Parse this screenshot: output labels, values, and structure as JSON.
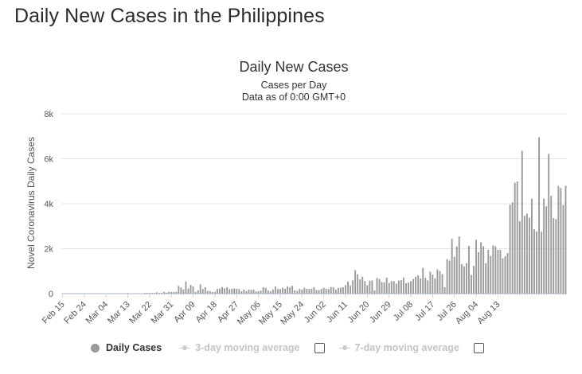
{
  "page": {
    "heading": "Daily New Cases in the Philippines"
  },
  "chart_data": {
    "type": "bar",
    "title": "Daily New Cases",
    "subtitle_lines": [
      "Cases per Day",
      "Data as of 0:00 GMT+0"
    ],
    "ylabel": "Novel Coronavirus Daily Cases",
    "xlabel": "",
    "ylim": [
      0,
      8000
    ],
    "y_ticks": [
      0,
      2000,
      4000,
      6000,
      8000
    ],
    "y_tick_labels": [
      "0",
      "2k",
      "4k",
      "6k",
      "8k"
    ],
    "categories_start": "Feb 15",
    "x_tick_labels": [
      "Feb 15",
      "Feb 24",
      "Mar 04",
      "Mar 13",
      "Mar 22",
      "Mar 31",
      "Apr 09",
      "Apr 18",
      "Apr 27",
      "May 06",
      "May 15",
      "May 24",
      "Jun 02",
      "Jun 11",
      "Jun 20",
      "Jun 29",
      "Jul 08",
      "Jul 17",
      "Jul 26",
      "Aug 04",
      "Aug 13"
    ],
    "x_tick_interval_days": 9,
    "bar_color": "#9a9a9a",
    "gridlines": true,
    "legend_position": "bottom",
    "series": [
      {
        "name": "Daily Cases",
        "values": [
          0,
          0,
          0,
          0,
          0,
          0,
          0,
          0,
          0,
          0,
          0,
          0,
          0,
          0,
          0,
          0,
          0,
          0,
          0,
          0,
          0,
          0,
          0,
          0,
          0,
          0,
          0,
          3,
          0,
          0,
          0,
          0,
          0,
          0,
          2,
          10,
          24,
          14,
          7,
          54,
          13,
          22,
          84,
          43,
          80,
          79,
          73,
          82,
          343,
          272,
          188,
          538,
          227,
          385,
          322,
          76,
          152,
          414,
          206,
          284,
          122,
          112,
          70,
          76,
          207,
          220,
          291,
          233,
          284,
          200,
          218,
          230,
          212,
          207,
          102,
          181,
          111,
          184,
          168,
          181,
          100,
          104,
          134,
          284,
          254,
          140,
          110,
          186,
          320,
          203,
          199,
          262,
          214,
          320,
          279,
          350,
          146,
          120,
          205,
          180,
          258,
          213,
          208,
          224,
          278,
          157,
          163,
          208,
          258,
          218,
          206,
          295,
          279,
          180,
          258,
          262,
          284,
          380,
          539,
          359,
          590,
          1046,
          862,
          634,
          751,
          557,
          380,
          579,
          586,
          138,
          693,
          655,
          519,
          500,
          707,
          470,
          552,
          552,
          444,
          582,
          594,
          713,
          457,
          490,
          560,
          651,
          753,
          813,
          677,
          1150,
          695,
          589,
          978,
          844,
          685,
          1080,
          1006,
          872,
          285,
          1531,
          1469,
          2434,
          1640,
          2099,
          2539,
          1313,
          1209,
          1357,
          2124,
          834,
          1233,
          2392,
          1841,
          2286,
          2110,
          1357,
          1951,
          1678,
          2144,
          2103,
          1951,
          1954,
          1566,
          1665,
          1808,
          3954,
          4063,
          4933,
          4993,
          3226,
          6352,
          3462,
          3561,
          3379,
          4226,
          2859,
          2763,
          6958,
          2756,
          4226,
          3886,
          6216,
          4351,
          3356,
          3314,
          4786,
          4700,
          3935,
          4800
        ]
      }
    ]
  },
  "legend": {
    "daily_cases_label": "Daily Cases",
    "avg3_label": "3-day moving average",
    "avg7_label": "7-day moving average"
  }
}
